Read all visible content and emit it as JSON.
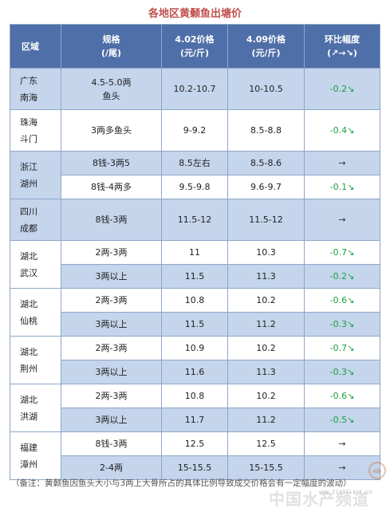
{
  "title": "各地区黄颡鱼出塘价",
  "headers": {
    "region": "区域",
    "spec_line1": "规格",
    "spec_line2": "(/尾)",
    "p1_line1": "4.02价格",
    "p1_line2": "(元/斤)",
    "p2_line1": "4.09价格",
    "p2_line2": "(元/斤)",
    "change_line1": "环比幅度",
    "change_line2": "(↗→↘)"
  },
  "rows": [
    {
      "region": "广东\n南海",
      "span": 1,
      "spec": "4.5-5.0两\n鱼头",
      "p1": "10.2-10.7",
      "p2": "10-10.5",
      "change": "-0.2↘",
      "neutral": false,
      "bg": "blue",
      "tall": true
    },
    {
      "region": "珠海\n斗门",
      "span": 1,
      "spec": "3两多鱼头",
      "p1": "9-9.2",
      "p2": "8.5-8.8",
      "change": "-0.4↘",
      "neutral": false,
      "bg": "white",
      "tall": true
    },
    {
      "region": "浙江\n湖州",
      "span": 2,
      "spec": "8钱-3两5",
      "p1": "8.5左右",
      "p2": "8.5-8.6",
      "change": "→",
      "neutral": true,
      "bg": "blue"
    },
    {
      "region": null,
      "spec": "8钱-4两多",
      "p1": "9.5-9.8",
      "p2": "9.6-9.7",
      "change": "-0.1↘",
      "neutral": false,
      "bg": "white"
    },
    {
      "region": "四川\n成都",
      "span": 1,
      "spec": "8钱-3两",
      "p1": "11.5-12",
      "p2": "11.5-12",
      "change": "→",
      "neutral": true,
      "bg": "blue",
      "tall": true
    },
    {
      "region": "湖北\n武汉",
      "span": 2,
      "spec": "2两-3两",
      "p1": "11",
      "p2": "10.3",
      "change": "-0.7↘",
      "neutral": false,
      "bg": "white"
    },
    {
      "region": null,
      "spec": "3两以上",
      "p1": "11.5",
      "p2": "11.3",
      "change": "-0.2↘",
      "neutral": false,
      "bg": "blue"
    },
    {
      "region": "湖北\n仙桃",
      "span": 2,
      "spec": "2两-3两",
      "p1": "10.8",
      "p2": "10.2",
      "change": "-0.6↘",
      "neutral": false,
      "bg": "white"
    },
    {
      "region": null,
      "spec": "3两以上",
      "p1": "11.5",
      "p2": "11.2",
      "change": "-0.3↘",
      "neutral": false,
      "bg": "blue"
    },
    {
      "region": "湖北\n荆州",
      "span": 2,
      "spec": "2两-3两",
      "p1": "10.9",
      "p2": "10.2",
      "change": "-0.7↘",
      "neutral": false,
      "bg": "white"
    },
    {
      "region": null,
      "spec": "3两以上",
      "p1": "11.6",
      "p2": "11.3",
      "change": "-0.3↘",
      "neutral": false,
      "bg": "blue"
    },
    {
      "region": "湖北\n洪湖",
      "span": 2,
      "spec": "2两-3两",
      "p1": "10.8",
      "p2": "10.2",
      "change": "-0.6↘",
      "neutral": false,
      "bg": "white"
    },
    {
      "region": null,
      "spec": "3两以上",
      "p1": "11.7",
      "p2": "11.2",
      "change": "-0.5↘",
      "neutral": false,
      "bg": "blue"
    },
    {
      "region": "福建\n漳州",
      "span": 2,
      "spec": "8钱-3两",
      "p1": "12.5",
      "p2": "12.5",
      "change": "→",
      "neutral": true,
      "bg": "white"
    },
    {
      "region": null,
      "spec": "2-4两",
      "p1": "15-15.5",
      "p2": "15-15.5",
      "change": "→",
      "neutral": true,
      "bg": "blue"
    }
  ],
  "note": "（备注：黄颡鱼因鱼头大小与3两上大骨所占的具体比例导致成交价格会有一定幅度的波动）",
  "watermark": "中国水产频道",
  "watermark_sub": "www.fishfirst.cn",
  "colors": {
    "title": "#c0504d",
    "header_bg": "#4f6fa8",
    "row_blue": "#c4d5ec",
    "row_white": "#ffffff",
    "decrease": "#1e9e3c"
  }
}
